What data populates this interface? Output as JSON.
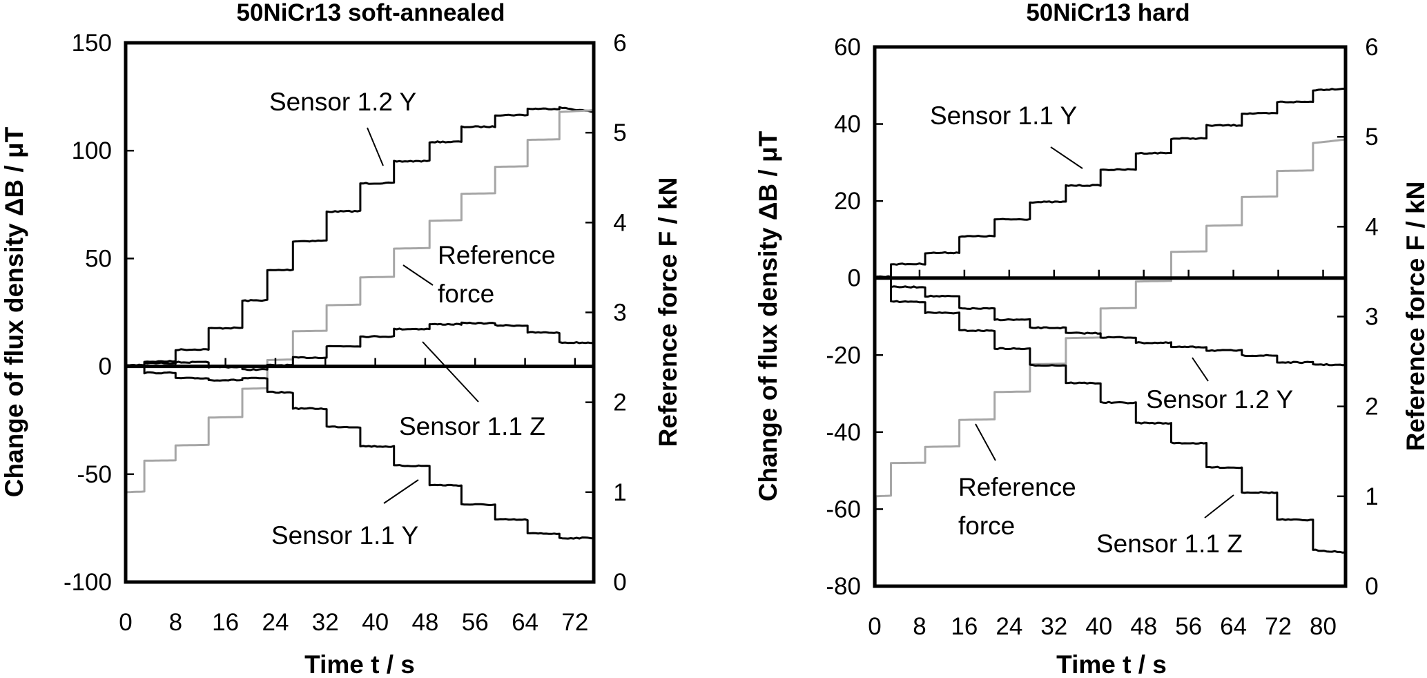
{
  "chart_data": [
    {
      "type": "line",
      "title": "50NiCr13 soft-annealed",
      "xlabel": "Time t / s",
      "ylabel": "Change of flux density ΔB / μT",
      "y2label": "Reference force F / kN",
      "xlim": [
        0,
        75
      ],
      "ylim": [
        -100,
        150
      ],
      "y2lim": [
        0,
        6
      ],
      "xticks": [
        "0",
        "8",
        "16",
        "24",
        "32",
        "40",
        "48",
        "56",
        "64",
        "72"
      ],
      "xtick_values": [
        0,
        8,
        16,
        24,
        32,
        40,
        48,
        56,
        64,
        72
      ],
      "yticks": [
        "-100",
        "-50",
        "0",
        "50",
        "100",
        "150"
      ],
      "ytick_values": [
        -100,
        -50,
        0,
        50,
        100,
        150
      ],
      "y2ticks": [
        "0",
        "1",
        "2",
        "3",
        "4",
        "5",
        "6"
      ],
      "y2tick_values": [
        0,
        1,
        2,
        3,
        4,
        5,
        6
      ],
      "grid": false,
      "series": [
        {
          "name": "Sensor 1.2 Y",
          "axis": "left",
          "color": "#000000",
          "steps": [
            [
              0,
              0.5
            ],
            [
              3,
              2.2
            ],
            [
              8,
              7.7
            ],
            [
              13.3,
              17.6
            ],
            [
              18.7,
              30.4
            ],
            [
              22.7,
              44.5
            ],
            [
              26.8,
              58
            ],
            [
              32.2,
              71.7
            ],
            [
              37.6,
              84.8
            ],
            [
              43,
              95
            ],
            [
              48.7,
              104
            ],
            [
              53.8,
              111
            ],
            [
              59.2,
              116.5
            ],
            [
              64.4,
              119.4
            ],
            [
              69.5,
              120
            ],
            [
              75,
              118
            ]
          ]
        },
        {
          "name": "Reference force",
          "axis": "right",
          "color": "#a6a6a6",
          "steps": [
            [
              0,
              1.0
            ],
            [
              3,
              1.35
            ],
            [
              8,
              1.52
            ],
            [
              13.3,
              1.83
            ],
            [
              18.7,
              2.15
            ],
            [
              22.7,
              2.47
            ],
            [
              26.8,
              2.79
            ],
            [
              32.2,
              3.08
            ],
            [
              37.6,
              3.39
            ],
            [
              43,
              3.71
            ],
            [
              48.7,
              4.02
            ],
            [
              53.8,
              4.32
            ],
            [
              59.2,
              4.62
            ],
            [
              64.4,
              4.92
            ],
            [
              69.5,
              5.23
            ],
            [
              75,
              5.25
            ]
          ]
        },
        {
          "name": "Sensor 1.1 Z",
          "axis": "left",
          "color": "#000000",
          "steps": [
            [
              0,
              0.5
            ],
            [
              3,
              1.5
            ],
            [
              8,
              1.9
            ],
            [
              13.3,
              -0.3
            ],
            [
              18.7,
              -1.5
            ],
            [
              22.7,
              0.5
            ],
            [
              26.8,
              4
            ],
            [
              32.2,
              9.3
            ],
            [
              37.6,
              13.8
            ],
            [
              43,
              17.3
            ],
            [
              48.7,
              19.5
            ],
            [
              53.8,
              20
            ],
            [
              59.2,
              19
            ],
            [
              64.4,
              15.7
            ],
            [
              69.5,
              11
            ],
            [
              75,
              11
            ]
          ]
        },
        {
          "name": "Sensor 1.1 Y",
          "axis": "left",
          "color": "#000000",
          "steps": [
            [
              0,
              0
            ],
            [
              3,
              -3
            ],
            [
              8,
              -5.5
            ],
            [
              13.3,
              -6.4
            ],
            [
              18.7,
              -5.5
            ],
            [
              22.7,
              -12
            ],
            [
              26.8,
              -19.5
            ],
            [
              32.2,
              -28
            ],
            [
              37.6,
              -37
            ],
            [
              43,
              -46
            ],
            [
              48.7,
              -55
            ],
            [
              53.8,
              -64
            ],
            [
              59.2,
              -71
            ],
            [
              64.4,
              -77.5
            ],
            [
              69.5,
              -79.7
            ],
            [
              75,
              -79.5
            ]
          ]
        }
      ],
      "annotations": [
        "Sensor 1.2 Y",
        "Reference",
        "force",
        "Sensor 1.1 Z",
        "Sensor 1.1 Y"
      ]
    },
    {
      "type": "line",
      "title": "50NiCr13 hard",
      "xlabel": "Time t / s",
      "ylabel": "Change of flux density ΔB / μT",
      "y2label": "Reference force F / kN",
      "xlim": [
        0,
        84
      ],
      "ylim": [
        -80,
        60
      ],
      "y2lim": [
        0,
        6
      ],
      "xticks": [
        "0",
        "8",
        "16",
        "24",
        "32",
        "40",
        "48",
        "56",
        "64",
        "72",
        "80"
      ],
      "xtick_values": [
        0,
        8,
        16,
        24,
        32,
        40,
        48,
        56,
        64,
        72,
        80
      ],
      "yticks": [
        "-80",
        "-60",
        "-40",
        "-20",
        "0",
        "20",
        "40",
        "60"
      ],
      "ytick_values": [
        -80,
        -60,
        -40,
        -20,
        0,
        20,
        40,
        60
      ],
      "y2ticks": [
        "0",
        "1",
        "2",
        "3",
        "4",
        "5",
        "6"
      ],
      "y2tick_values": [
        0,
        1,
        2,
        3,
        4,
        5,
        6
      ],
      "grid": false,
      "series": [
        {
          "name": "Sensor 1.1 Y",
          "axis": "left",
          "color": "#000000",
          "steps": [
            [
              0,
              0.3
            ],
            [
              2.9,
              3.6
            ],
            [
              9,
              6.5
            ],
            [
              15.1,
              10.8
            ],
            [
              21.4,
              15.2
            ],
            [
              27.7,
              19.7
            ],
            [
              34.1,
              24.0
            ],
            [
              40.3,
              28.1
            ],
            [
              46.6,
              32.4
            ],
            [
              52.9,
              36.2
            ],
            [
              59.2,
              39.6
            ],
            [
              65.5,
              42.7
            ],
            [
              71.8,
              45.7
            ],
            [
              78.2,
              48.8
            ],
            [
              84,
              49.2
            ]
          ]
        },
        {
          "name": "Reference force",
          "axis": "right",
          "color": "#a6a6a6",
          "steps": [
            [
              0,
              0
            ],
            [
              0.2,
              1.0
            ],
            [
              2.9,
              1.37
            ],
            [
              9,
              1.55
            ],
            [
              15.1,
              1.85
            ],
            [
              21.4,
              2.16
            ],
            [
              27.7,
              2.47
            ],
            [
              34.1,
              2.76
            ],
            [
              40.3,
              3.09
            ],
            [
              46.6,
              3.39
            ],
            [
              52.9,
              3.72
            ],
            [
              59.2,
              4.01
            ],
            [
              65.5,
              4.33
            ],
            [
              71.8,
              4.62
            ],
            [
              78.2,
              4.93
            ],
            [
              84,
              4.97
            ]
          ]
        },
        {
          "name": "Sensor 1.2 Y",
          "axis": "left",
          "color": "#000000",
          "steps": [
            [
              0,
              0.3
            ],
            [
              2.9,
              -2.3
            ],
            [
              9,
              -4.7
            ],
            [
              15.1,
              -7.9
            ],
            [
              21.4,
              -10.8
            ],
            [
              27.7,
              -12.9
            ],
            [
              34.1,
              -14.3
            ],
            [
              40.3,
              -15.4
            ],
            [
              46.6,
              -16.8
            ],
            [
              52.9,
              -17.9
            ],
            [
              59.2,
              -18.8
            ],
            [
              65.5,
              -20.1
            ],
            [
              71.8,
              -21.9
            ],
            [
              78.2,
              -22.4
            ],
            [
              84,
              -22.6
            ]
          ]
        },
        {
          "name": "Sensor 1.1 Z",
          "axis": "left",
          "color": "#000000",
          "steps": [
            [
              0,
              0.3
            ],
            [
              2.9,
              -6.1
            ],
            [
              9,
              -9.0
            ],
            [
              15.1,
              -13.6
            ],
            [
              21.4,
              -18.3
            ],
            [
              27.7,
              -22.6
            ],
            [
              34.1,
              -27.2
            ],
            [
              40.3,
              -32.3
            ],
            [
              46.6,
              -37.6
            ],
            [
              52.9,
              -42.8
            ],
            [
              59.2,
              -49.1
            ],
            [
              65.5,
              -55.6
            ],
            [
              71.8,
              -62.7
            ],
            [
              78.2,
              -70.6
            ],
            [
              84,
              -71.2
            ]
          ]
        }
      ],
      "annotations": [
        "Sensor 1.1 Y",
        "Sensor 1.2 Y",
        "Reference",
        "force",
        "Sensor 1.1 Z"
      ]
    }
  ]
}
